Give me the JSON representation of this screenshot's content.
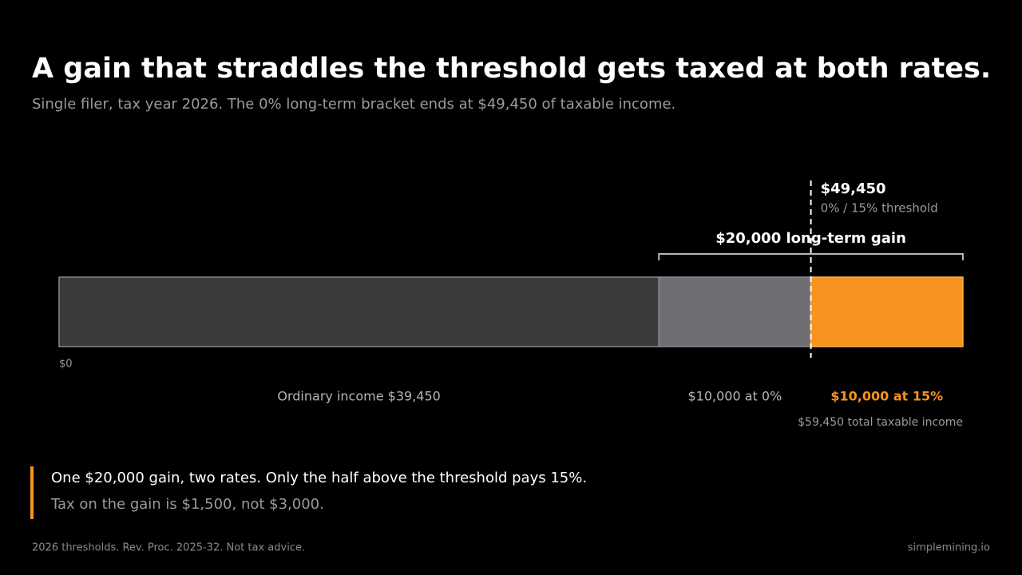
{
  "chart_data": {
    "type": "stacked-bar",
    "title": "A gain that straddles the threshold gets taxed at both rates.",
    "subtitle": "Single filer, tax year 2026. The 0% long-term bracket ends at $49,450 of taxable income.",
    "xlim": [
      0,
      59450
    ],
    "xticks": [
      {
        "value": 0,
        "label": "$0"
      }
    ],
    "segments": [
      {
        "label": "Ordinary income $39,450",
        "value": 39450,
        "color": "#3a3a3c"
      },
      {
        "label": "$10,000 at 0%",
        "value": 10000,
        "color": "#6e6e73"
      },
      {
        "label": "$10,000 at 15%",
        "value": 10000,
        "color": "#f7931e"
      }
    ],
    "threshold": {
      "value": 49450,
      "label": "$49,450",
      "note": "0% / 15% threshold"
    },
    "bracket": {
      "value": 20000,
      "label": "$20,000 long-term gain"
    },
    "total": {
      "value": 59450,
      "label": "$59,450 total taxable income"
    }
  },
  "callout": {
    "headline": "One $20,000 gain, two rates. Only the half above the threshold pays 15%.",
    "detail": "Tax on the gain is $1,500, not $3,000."
  },
  "footer": {
    "source": "2026 thresholds. Rev. Proc. 2025-32. Not tax advice.",
    "brand": "simplemining.io"
  }
}
